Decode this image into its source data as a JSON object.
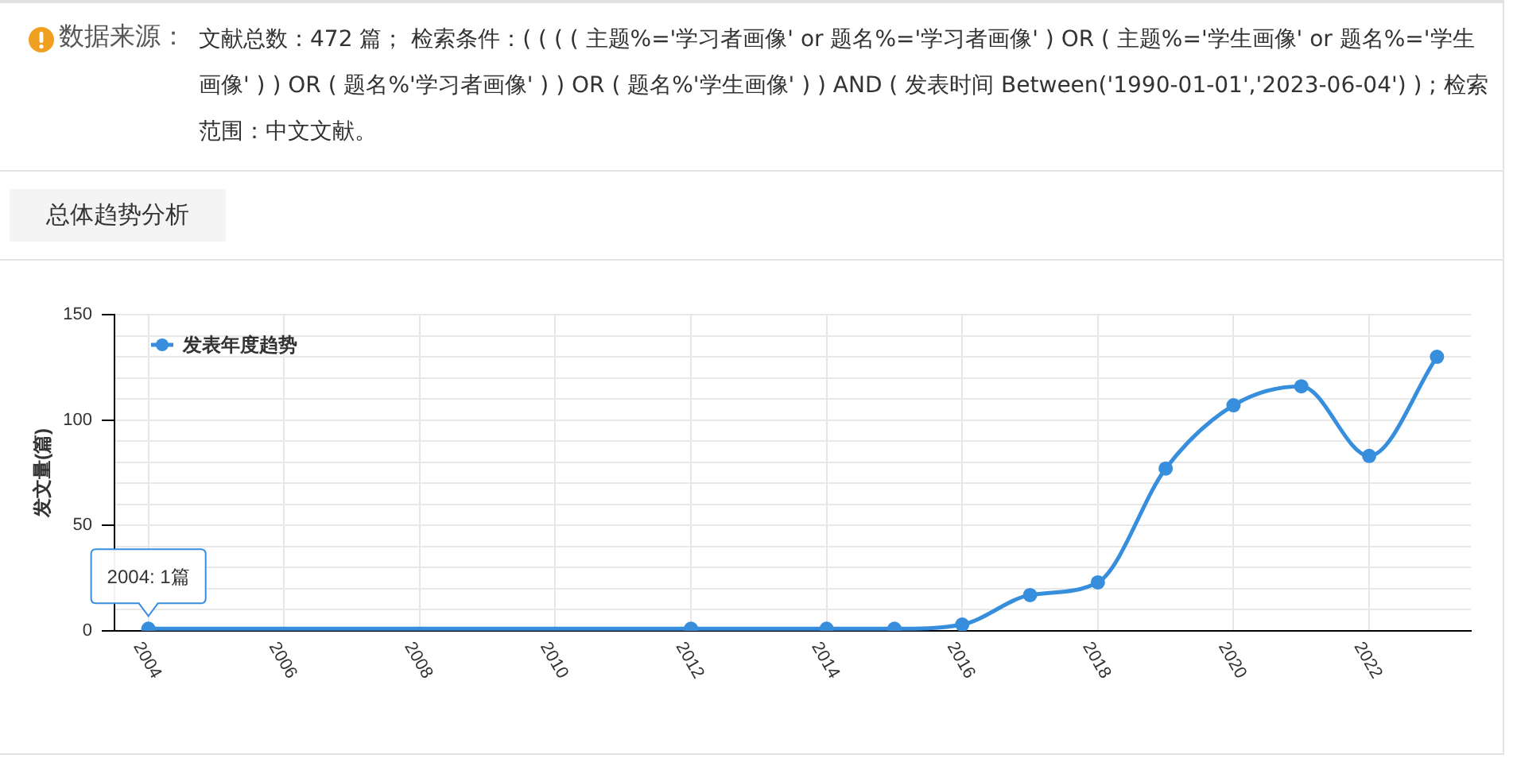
{
  "chart_data": {
    "type": "line",
    "title": "总体趋势分析",
    "annotations": [
      "数据来源：",
      "文献总数：472 篇； 检索条件：( ( ( ( 主题%='学习者画像' or 题名%='学习者画像' ) OR ( 主题%='学生画像' or 题名%='学生画像' ) ) OR ( 题名%'学习者画像' ) ) OR ( 题名%'学生画像' ) ) AND ( 发表时间 Between('1990-01-01','2023-06-04') ) ; 检索范围：中文文献。",
      {
        "text": "2004: 1篇",
        "x": 2004,
        "y": 1
      }
    ],
    "ylabel": "发文量(篇)",
    "x": [
      2004,
      2012,
      2014,
      2015,
      2016,
      2017,
      2018,
      2019,
      2020,
      2021,
      2022,
      2023
    ],
    "series": [
      {
        "name": "发表年度趋势",
        "color": "#378edd",
        "values": [
          1,
          1,
          1,
          1,
          3,
          17,
          23,
          77,
          107,
          116,
          83,
          130
        ]
      }
    ],
    "xlim": [
      2003.5,
      2023.5
    ],
    "xticks": [
      2004,
      2006,
      2008,
      2010,
      2012,
      2014,
      2016,
      2018,
      2020,
      2022
    ],
    "ylim": [
      0,
      150
    ],
    "yticks": [
      0,
      {
        "value": 10,
        "label": null
      },
      {
        "value": 20,
        "label": null
      },
      {
        "value": 30,
        "label": null
      },
      {
        "value": 40,
        "label": null
      },
      50,
      {
        "value": 60,
        "label": null
      },
      {
        "value": 70,
        "label": null
      },
      {
        "value": 80,
        "label": null
      },
      {
        "value": 90,
        "label": null
      },
      100,
      {
        "value": 110,
        "label": null
      },
      {
        "value": 120,
        "label": null
      },
      {
        "value": 130,
        "label": null
      },
      {
        "value": 140,
        "label": null
      },
      150
    ],
    "grid": true,
    "legend": "top left",
    "marker": "circle",
    "line_style": "solid"
  }
}
